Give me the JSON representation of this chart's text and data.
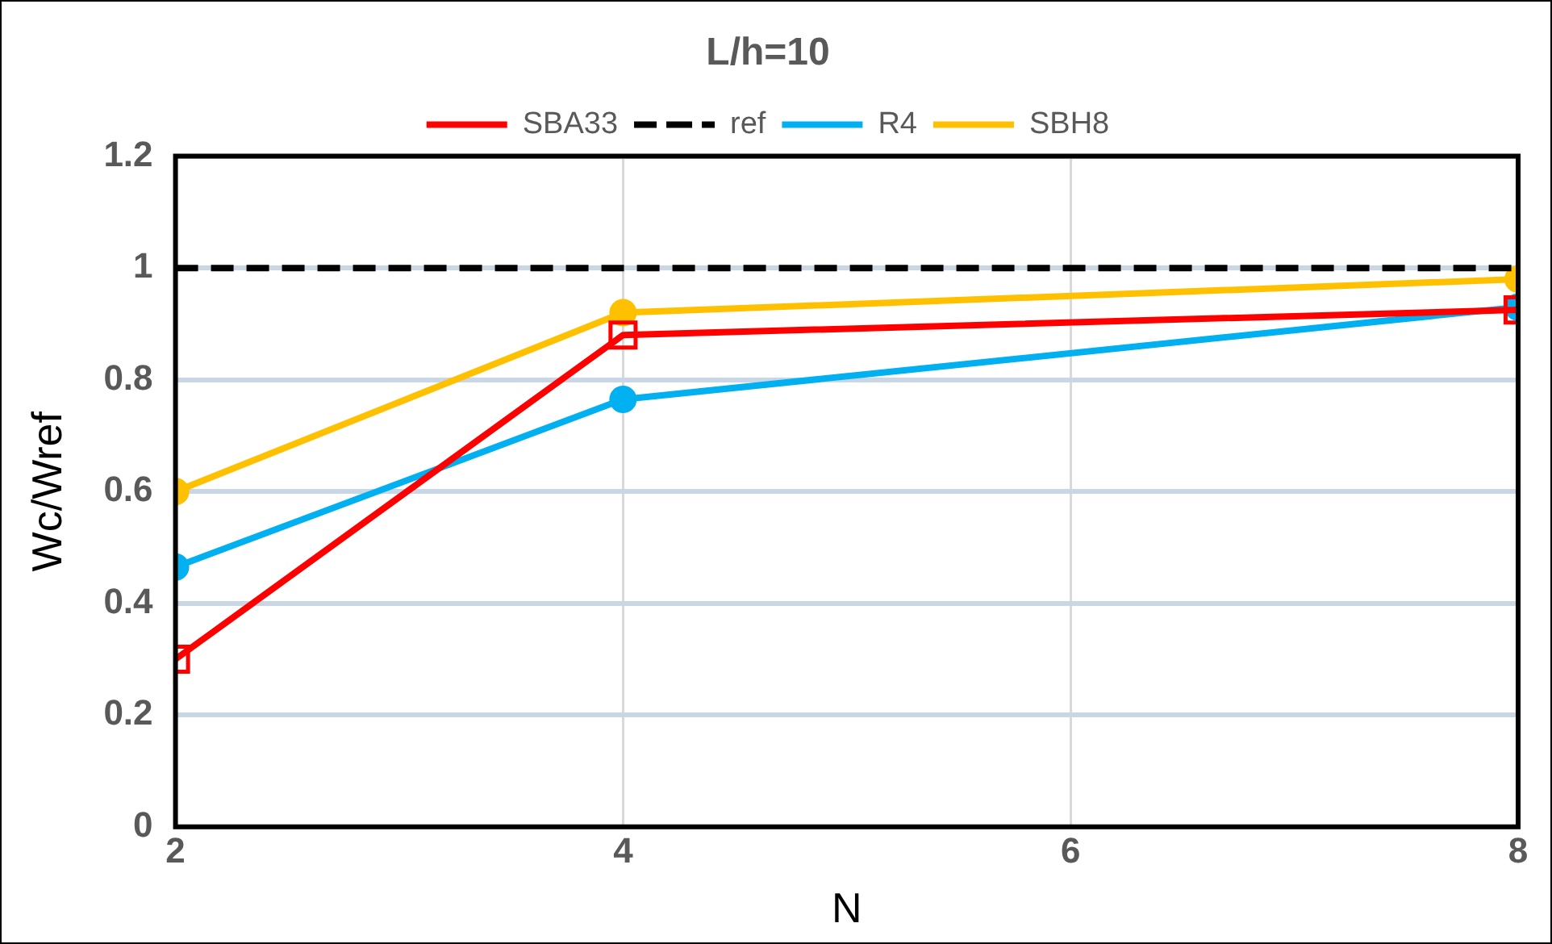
{
  "chart_data": {
    "type": "line",
    "title": "L/h=10",
    "xlabel": "N",
    "ylabel": "Wc/Wref",
    "x": [
      2,
      4,
      8
    ],
    "series": [
      {
        "name": "SBA33",
        "color": "#ff0000",
        "values": [
          0.3,
          0.88,
          0.925
        ],
        "marker": "square"
      },
      {
        "name": "ref",
        "color": "#000000",
        "values": [
          1,
          1,
          1
        ],
        "marker": "none",
        "line_style": "dashed"
      },
      {
        "name": "R4",
        "color": "#00b0f0",
        "values": [
          0.465,
          0.765,
          0.93
        ],
        "marker": "circle"
      },
      {
        "name": "SBH8",
        "color": "#ffc000",
        "values": [
          0.6,
          0.92,
          0.98
        ],
        "marker": "circle"
      }
    ],
    "xlim": [
      2,
      8
    ],
    "xticks": [
      2,
      4,
      6,
      8
    ],
    "ylim": [
      0,
      1.2
    ],
    "yticks": [
      0,
      0.2,
      0.4,
      0.6,
      0.8,
      1,
      1.2
    ],
    "grid": true,
    "legend": "top"
  }
}
